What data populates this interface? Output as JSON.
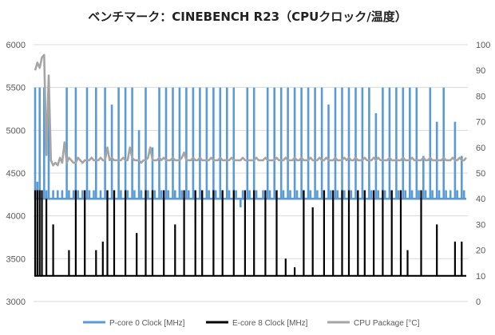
{
  "chart_data": {
    "type": "line",
    "title": "ベンチマーク：CINEBENCH R23（CPUクロック/温度）",
    "xlabel": "",
    "ylabel": "",
    "ylim": [
      3000,
      6000
    ],
    "y2lim": [
      0,
      100
    ],
    "yticks": [
      "6000",
      "5500",
      "5000",
      "4500",
      "4000",
      "3500",
      "3000"
    ],
    "y2ticks": [
      "100",
      "90",
      "80",
      "70",
      "60",
      "50",
      "40",
      "30",
      "20",
      "10",
      "0"
    ],
    "grid": true,
    "legend_position": "bottom",
    "series": [
      {
        "name": "P-core 0 Clock [MHz]",
        "axis": "left",
        "color": "#5b9bd5",
        "base": 4200,
        "values": [
          5500,
          4400,
          5500,
          4200,
          5500,
          4300,
          5500,
          4200,
          4300,
          4200,
          4300,
          4200,
          4300,
          4200,
          5500,
          4300,
          4200,
          4300,
          5500,
          4300,
          4200,
          4300,
          4200,
          5500,
          4300,
          4200,
          4300,
          5500,
          4200,
          4300,
          4200,
          5500,
          4300,
          4200,
          5300,
          4300,
          4200,
          5500,
          4300,
          4200,
          5500,
          4300,
          4200,
          5500,
          4300,
          4200,
          5000,
          4300,
          4200,
          5500,
          4300,
          4200,
          4800,
          4300,
          4200,
          5500,
          4300,
          4200,
          5500,
          4300,
          4200,
          5500,
          4300,
          4200,
          5500,
          4300,
          4200,
          5500,
          4300,
          4200,
          5500,
          4300,
          4200,
          5500,
          4300,
          4200,
          5500,
          4300,
          4200,
          5500,
          4300,
          4200,
          5500,
          4300,
          4200,
          5500,
          4300,
          4200,
          5500,
          4300,
          4200,
          4100,
          4300,
          4200,
          5500,
          4300,
          4200,
          5500,
          4300,
          4200,
          4200,
          4300,
          4200,
          5500,
          4300,
          4200,
          5500,
          4300,
          4200,
          5500,
          4300,
          4200,
          5500,
          4300,
          4200,
          5500,
          4300,
          4200,
          5500,
          4300,
          4200,
          5500,
          4300,
          4200,
          5500,
          4300,
          4200,
          5500,
          4300,
          4200,
          5300,
          4300,
          4200,
          5500,
          4300,
          4200,
          5500,
          4300,
          4200,
          5500,
          4300,
          4200,
          5500,
          4300,
          4200,
          5500,
          4300,
          4200,
          5500,
          4300,
          4200,
          5200,
          4300,
          4200,
          5500,
          4300,
          4200,
          5500,
          4300,
          4200,
          5500,
          4300,
          4200,
          5500,
          4300,
          4200,
          5500,
          4300,
          4200,
          5500,
          4300,
          4200,
          4700,
          4300,
          4200,
          5500,
          4300,
          4200,
          5100,
          4300,
          4200,
          5500,
          4300,
          4200,
          4300,
          4200,
          5100,
          4300,
          4200,
          4700,
          4300,
          4200
        ]
      },
      {
        "name": "E-core 8 Clock [MHz]",
        "axis": "left",
        "color": "#000000",
        "base": 3300,
        "values": [
          4300,
          4300,
          4300,
          4300,
          3300,
          4200,
          3300,
          3300,
          3900,
          3300,
          3300,
          3300,
          3300,
          3300,
          3300,
          3600,
          3300,
          3300,
          4300,
          3300,
          3300,
          3300,
          4300,
          3300,
          3300,
          3300,
          3300,
          3600,
          3300,
          3300,
          3700,
          3300,
          4300,
          3300,
          3300,
          4300,
          3300,
          3300,
          3300,
          3300,
          4300,
          3300,
          3300,
          3300,
          3300,
          3800,
          3300,
          3300,
          3300,
          4300,
          3300,
          3300,
          4300,
          3300,
          3300,
          3300,
          3300,
          4300,
          3300,
          3300,
          3300,
          3300,
          3900,
          3300,
          3300,
          3300,
          4300,
          3300,
          3300,
          3300,
          3300,
          4300,
          3300,
          3300,
          4300,
          3300,
          3300,
          3300,
          3300,
          4300,
          3300,
          3300,
          3300,
          4300,
          3300,
          3300,
          3300,
          3300,
          4300,
          3300,
          3300,
          3300,
          3300,
          4300,
          3300,
          3300,
          3300,
          4300,
          3300,
          3300,
          3300,
          3300,
          4300,
          3300,
          3300,
          3300,
          3300,
          4300,
          3300,
          3300,
          3300,
          3500,
          3300,
          3300,
          3300,
          3400,
          3300,
          3300,
          3300,
          4300,
          3300,
          3300,
          3300,
          4100,
          3300,
          3300,
          3300,
          3300,
          4300,
          3300,
          3300,
          3300,
          4300,
          3300,
          3300,
          3300,
          4300,
          3300,
          3300,
          4300,
          3300,
          3300,
          3300,
          4300,
          3300,
          3300,
          4300,
          3300,
          3300,
          3300,
          4300,
          3300,
          3300,
          3300,
          4300,
          3300,
          3300,
          3300,
          4300,
          3300,
          3300,
          3300,
          4300,
          3300,
          3300,
          3600,
          3300,
          3300,
          3300,
          3300,
          3300,
          4300,
          3300,
          3300,
          3300,
          3300,
          3300,
          3300,
          3900,
          3300,
          3300,
          3300,
          3300,
          3300,
          3300,
          3300,
          3700,
          3300,
          3300,
          3700,
          3300,
          3300
        ]
      },
      {
        "name": "CPU Package [°C]",
        "axis": "right",
        "color": "#a5a5a5",
        "values": [
          90,
          93,
          91,
          95,
          96,
          57,
          88,
          55,
          53,
          54,
          53,
          56,
          54,
          62,
          54,
          56,
          55,
          54,
          54,
          56,
          55,
          54,
          55,
          55,
          55,
          56,
          55,
          55,
          55,
          56,
          55,
          55,
          60,
          55,
          56,
          55,
          55,
          55,
          55,
          56,
          55,
          55,
          60,
          56,
          55,
          55,
          55,
          54,
          55,
          55,
          56,
          60,
          55,
          55,
          55,
          56,
          55,
          56,
          55,
          55,
          55,
          56,
          55,
          55,
          55,
          56,
          58,
          55,
          55,
          55,
          56,
          55,
          55,
          56,
          55,
          55,
          55,
          55,
          56,
          55,
          55,
          55,
          56,
          55,
          55,
          55,
          55,
          56,
          55,
          55,
          55,
          55,
          56,
          55,
          55,
          55,
          55,
          55,
          56,
          55,
          55,
          55,
          56,
          55,
          55,
          55,
          55,
          56,
          55,
          55,
          55,
          56,
          55,
          55,
          55,
          56,
          55,
          55,
          56,
          55,
          55,
          55,
          56,
          55,
          55,
          55,
          56,
          55,
          55,
          56,
          55,
          55,
          55,
          56,
          55,
          55,
          55,
          56,
          55,
          56,
          55,
          55,
          56,
          55,
          55,
          55,
          56,
          55,
          55,
          55,
          56,
          55,
          56,
          55,
          55,
          55,
          55,
          56,
          55,
          55,
          55,
          55,
          55,
          56,
          55,
          55,
          55,
          56,
          55,
          55,
          55,
          55,
          56,
          55,
          55,
          56,
          55,
          55,
          55,
          55,
          55,
          56,
          55,
          55,
          55,
          56,
          55,
          55,
          56,
          55,
          55,
          56
        ]
      }
    ]
  }
}
